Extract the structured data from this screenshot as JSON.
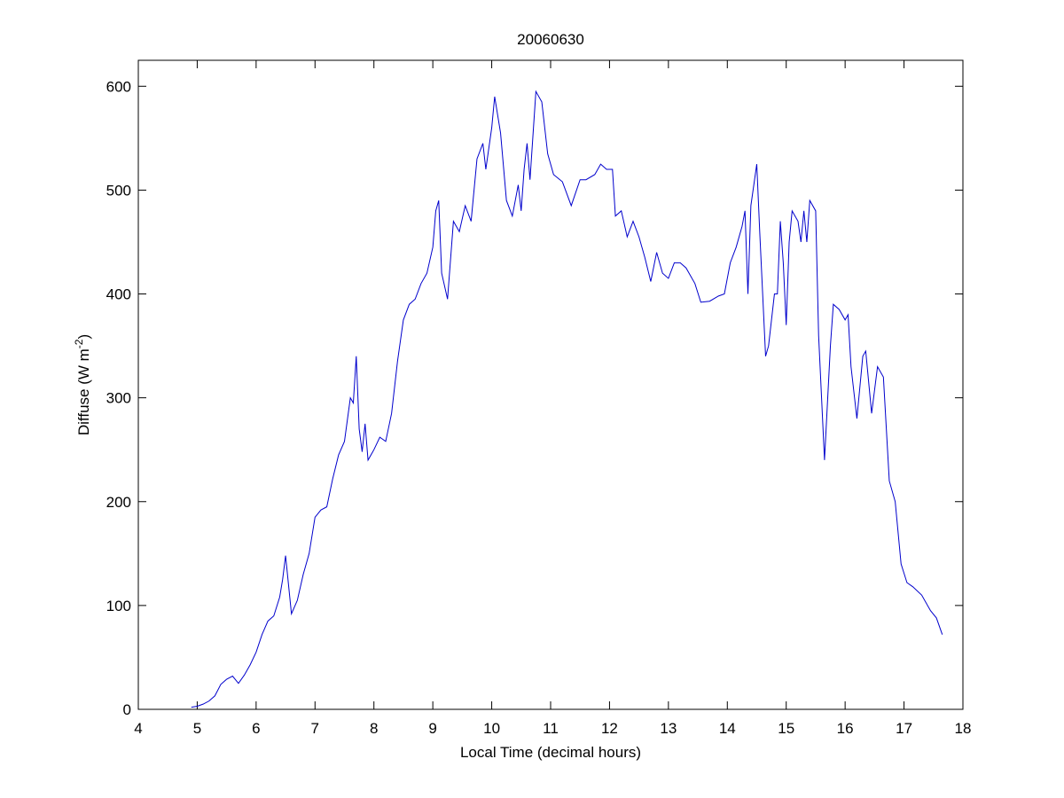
{
  "chart_data": {
    "type": "line",
    "title": "20060630",
    "xlabel": "Local Time (decimal hours)",
    "ylabel_parts": [
      "Diffuse (W m",
      "-2",
      ")"
    ],
    "xlim": [
      4,
      18
    ],
    "xticks": [
      4,
      5,
      6,
      7,
      8,
      9,
      10,
      11,
      12,
      13,
      14,
      15,
      16,
      17,
      18
    ],
    "ylim": [
      0,
      625
    ],
    "yticks": [
      0,
      100,
      200,
      300,
      400,
      500,
      600
    ],
    "grid": false,
    "series": [
      {
        "color": "#0000cc",
        "x": [
          4.9,
          5.0,
          5.1,
          5.2,
          5.3,
          5.4,
          5.5,
          5.6,
          5.7,
          5.8,
          5.9,
          6.0,
          6.1,
          6.2,
          6.3,
          6.4,
          6.45,
          6.5,
          6.55,
          6.6,
          6.7,
          6.8,
          6.9,
          7.0,
          7.1,
          7.2,
          7.3,
          7.4,
          7.5,
          7.6,
          7.65,
          7.7,
          7.75,
          7.8,
          7.85,
          7.9,
          8.0,
          8.1,
          8.2,
          8.3,
          8.4,
          8.5,
          8.6,
          8.7,
          8.8,
          8.9,
          9.0,
          9.05,
          9.1,
          9.15,
          9.25,
          9.35,
          9.45,
          9.55,
          9.65,
          9.75,
          9.85,
          9.9,
          10.0,
          10.05,
          10.15,
          10.25,
          10.35,
          10.45,
          10.5,
          10.55,
          10.6,
          10.65,
          10.75,
          10.85,
          10.95,
          11.05,
          11.2,
          11.35,
          11.5,
          11.6,
          11.75,
          11.85,
          11.95,
          12.05,
          12.1,
          12.2,
          12.3,
          12.4,
          12.5,
          12.6,
          12.7,
          12.8,
          12.9,
          13.0,
          13.1,
          13.2,
          13.3,
          13.45,
          13.55,
          13.7,
          13.85,
          13.95,
          14.05,
          14.15,
          14.25,
          14.3,
          14.35,
          14.4,
          14.5,
          14.55,
          14.65,
          14.7,
          14.8,
          14.85,
          14.9,
          14.95,
          15.0,
          15.05,
          15.1,
          15.2,
          15.25,
          15.3,
          15.35,
          15.4,
          15.5,
          15.55,
          15.6,
          15.65,
          15.75,
          15.8,
          15.9,
          16.0,
          16.05,
          16.1,
          16.2,
          16.3,
          16.35,
          16.45,
          16.55,
          16.65,
          16.75,
          16.85,
          16.95,
          17.05,
          17.15,
          17.3,
          17.45,
          17.55,
          17.65
        ],
        "values": [
          2,
          3,
          5,
          8,
          13,
          24,
          29,
          32,
          25,
          33,
          43,
          55,
          72,
          85,
          90,
          108,
          125,
          148,
          120,
          92,
          105,
          130,
          150,
          185,
          192,
          195,
          222,
          245,
          258,
          300,
          295,
          340,
          270,
          248,
          275,
          240,
          250,
          262,
          258,
          285,
          335,
          375,
          390,
          395,
          410,
          420,
          445,
          480,
          490,
          420,
          395,
          470,
          460,
          485,
          470,
          530,
          545,
          520,
          560,
          590,
          555,
          490,
          475,
          505,
          480,
          520,
          545,
          510,
          595,
          585,
          535,
          515,
          508,
          485,
          510,
          510,
          515,
          525,
          520,
          520,
          475,
          480,
          455,
          470,
          455,
          435,
          412,
          440,
          420,
          415,
          430,
          430,
          425,
          410,
          392,
          393,
          398,
          400,
          430,
          445,
          465,
          480,
          400,
          485,
          525,
          460,
          340,
          350,
          400,
          400,
          470,
          430,
          370,
          450,
          480,
          470,
          450,
          480,
          450,
          490,
          480,
          360,
          300,
          240,
          350,
          390,
          385,
          375,
          380,
          330,
          280,
          340,
          345,
          285,
          330,
          320,
          220,
          200,
          140,
          122,
          118,
          110,
          95,
          88,
          72
        ]
      }
    ]
  }
}
